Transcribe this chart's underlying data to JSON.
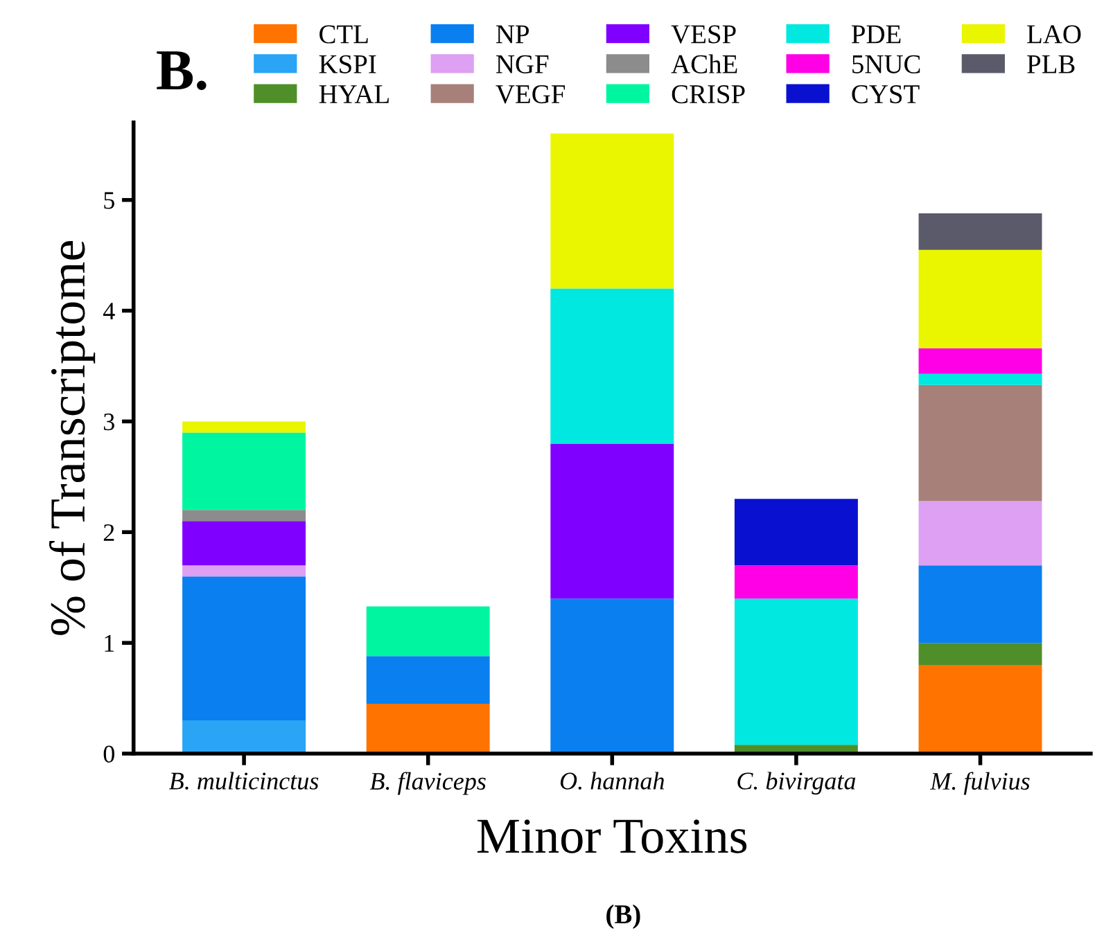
{
  "chart_data": {
    "type": "bar",
    "stacked": true,
    "title": "B.",
    "xlabel": "Minor Toxins",
    "ylabel": "% of Transcriptome",
    "categories": [
      "B. multicinctus",
      "B. flaviceps",
      "O. hannah",
      "C. bivirgata",
      "M. fulvius"
    ],
    "ylim": [
      0,
      5.7
    ],
    "yticks": [
      0,
      1,
      2,
      3,
      4,
      5
    ],
    "grid": false,
    "legend": "top",
    "annotations": [
      "(B)"
    ],
    "series": [
      {
        "name": "CTL",
        "color": "#ff7300",
        "values": [
          null,
          0.45,
          null,
          null,
          0.8
        ]
      },
      {
        "name": "KSPI",
        "color": "#2aa4f4",
        "values": [
          0.3,
          null,
          null,
          null,
          null
        ]
      },
      {
        "name": "HYAL",
        "color": "#4f8f2a",
        "values": [
          null,
          null,
          null,
          0.08,
          0.2
        ]
      },
      {
        "name": "NP",
        "color": "#0a7ff0",
        "values": [
          1.3,
          0.43,
          1.4,
          null,
          0.7
        ]
      },
      {
        "name": "NGF",
        "color": "#dda0f2",
        "values": [
          0.1,
          null,
          null,
          null,
          0.58
        ]
      },
      {
        "name": "VEGF",
        "color": "#a8807a",
        "values": [
          null,
          null,
          null,
          null,
          1.05
        ]
      },
      {
        "name": "VESP",
        "color": "#8000ff",
        "values": [
          0.4,
          null,
          1.4,
          null,
          null
        ]
      },
      {
        "name": "AChE",
        "color": "#8c8c8c",
        "values": [
          0.1,
          null,
          null,
          null,
          null
        ]
      },
      {
        "name": "CRISP",
        "color": "#00f5a0",
        "values": [
          0.7,
          0.45,
          null,
          null,
          null
        ]
      },
      {
        "name": "PDE",
        "color": "#00e8e0",
        "values": [
          null,
          null,
          1.4,
          1.32,
          0.1
        ]
      },
      {
        "name": "5NUC",
        "color": "#ff00e6",
        "values": [
          null,
          null,
          null,
          0.3,
          0.23
        ]
      },
      {
        "name": "CYST",
        "color": "#0a10d0",
        "values": [
          null,
          null,
          null,
          0.6,
          null
        ]
      },
      {
        "name": "LAO",
        "color": "#eaf500",
        "values": [
          0.1,
          null,
          1.4,
          null,
          0.89
        ]
      },
      {
        "name": "PLB",
        "color": "#5a5a6a",
        "values": [
          null,
          null,
          null,
          null,
          0.33
        ]
      }
    ]
  }
}
